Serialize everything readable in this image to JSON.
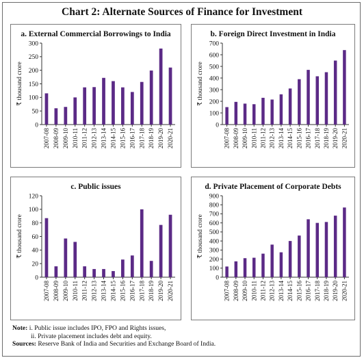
{
  "title": "Chart 2:  Alternate Sources of Finance for Investment",
  "notes": {
    "note_label": "Note:",
    "note_1": "i.  Public issue includes IPO, FPO and Rights issues,",
    "note_2": "ii. Private placement includes debt and equity.",
    "sources_label": "Sources:",
    "sources_text": "Reserve Bank of India and Securities and Exchange Board of India."
  },
  "colors": {
    "bar": "#5b2a86",
    "axis": "#333333"
  },
  "chart_data": [
    {
      "type": "bar",
      "title": "a. External Commercial Borrowings to India",
      "ylabel": "₹ thousand crore",
      "xlabel": "",
      "ylim": [
        0,
        300
      ],
      "yticks": [
        0,
        50,
        100,
        150,
        200,
        250,
        300
      ],
      "grid": false,
      "categories": [
        "2007-08",
        "2008-09",
        "2009-10",
        "2010-11",
        "2011-12",
        "2012-13",
        "2013-14",
        "2014-15",
        "2015-16",
        "2016-17",
        "2017-18",
        "2018-19",
        "2019-20",
        "2020-21"
      ],
      "values": [
        115,
        60,
        65,
        100,
        137,
        138,
        172,
        160,
        137,
        120,
        157,
        199,
        280,
        210
      ]
    },
    {
      "type": "bar",
      "title": "b. Foreign Direct Investment in India",
      "ylabel": "₹ thousand crore",
      "xlabel": "",
      "ylim": [
        0,
        700
      ],
      "yticks": [
        0,
        100,
        200,
        300,
        400,
        500,
        600,
        700
      ],
      "grid": false,
      "categories": [
        "2007-08",
        "2008-09",
        "2009-10",
        "2010-11",
        "2011-12",
        "2012-13",
        "2013-14",
        "2014-15",
        "2015-16",
        "2016-17",
        "2017-18",
        "2018-19",
        "2019-20",
        "2020-21"
      ],
      "values": [
        150,
        195,
        180,
        175,
        230,
        215,
        260,
        310,
        390,
        470,
        415,
        450,
        550,
        640
      ]
    },
    {
      "type": "bar",
      "title": "c. Public issues",
      "ylabel": "₹ thousand crore",
      "xlabel": "",
      "ylim": [
        0,
        120
      ],
      "yticks": [
        0,
        20,
        40,
        60,
        80,
        100,
        120
      ],
      "grid": false,
      "categories": [
        "2007-08",
        "2008-09",
        "2009-10",
        "2010-11",
        "2011-12",
        "2012-13",
        "2013-14",
        "2014-15",
        "2015-16",
        "2016-17",
        "2017-18",
        "2018-19",
        "2019-20",
        "2020-21"
      ],
      "values": [
        87,
        16,
        57,
        52,
        16,
        12,
        12,
        9,
        26,
        32,
        100,
        24,
        77,
        92
      ]
    },
    {
      "type": "bar",
      "title": "d. Private Placement of Corporate Debts",
      "ylabel": "₹ thousand crore",
      "xlabel": "",
      "ylim": [
        0,
        900
      ],
      "yticks": [
        0,
        100,
        200,
        300,
        400,
        500,
        600,
        700,
        800,
        900
      ],
      "grid": false,
      "categories": [
        "2007-08",
        "2008-09",
        "2009-10",
        "2010-11",
        "2011-12",
        "2012-13",
        "2013-14",
        "2014-15",
        "2015-16",
        "2016-17",
        "2017-18",
        "2018-19",
        "2019-20",
        "2020-21"
      ],
      "values": [
        118,
        175,
        210,
        215,
        260,
        360,
        275,
        400,
        460,
        640,
        600,
        610,
        680,
        770
      ]
    }
  ]
}
